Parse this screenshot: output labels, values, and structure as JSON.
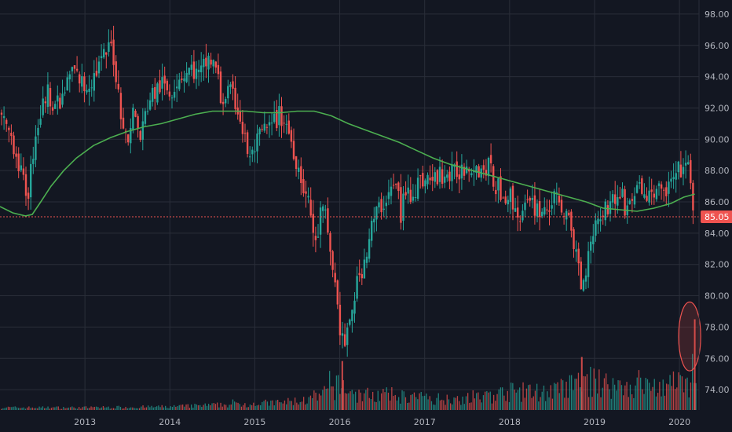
{
  "chart_data": {
    "type": "candlestick",
    "y_axis": {
      "position": "right",
      "range": [
        72.7,
        98.9
      ],
      "ticks": [
        "98.00",
        "96.00",
        "94.00",
        "92.00",
        "90.00",
        "88.00",
        "86.00",
        "84.00",
        "82.00",
        "80.00",
        "78.00",
        "76.00",
        "74.00"
      ]
    },
    "x_axis": {
      "range": [
        2012.0,
        2020.23
      ],
      "ticks": [
        {
          "label": "2013",
          "x": 2013.0
        },
        {
          "label": "2014",
          "x": 2014.0
        },
        {
          "label": "2015",
          "x": 2015.0
        },
        {
          "label": "2016",
          "x": 2016.0
        },
        {
          "label": "2017",
          "x": 2017.0
        },
        {
          "label": "2018",
          "x": 2018.0
        },
        {
          "label": "2019",
          "x": 2019.0
        },
        {
          "label": "2020",
          "x": 2020.0
        }
      ]
    },
    "grid": true,
    "colors": {
      "background": "#131722",
      "grid": "#2a2e39",
      "up": "#26a69a",
      "down": "#ef5350",
      "moving_average": "#4caf50",
      "price_line": "#ef5350",
      "highlight": "#ef5350"
    },
    "last_price": {
      "value": 85.05,
      "label": "85.05"
    },
    "price_path": [
      [
        2012.0,
        91.5
      ],
      [
        2012.15,
        90.0
      ],
      [
        2012.28,
        87.0
      ],
      [
        2012.33,
        86.6
      ],
      [
        2012.42,
        90.5
      ],
      [
        2012.55,
        93.0
      ],
      [
        2012.7,
        92.0
      ],
      [
        2012.85,
        94.5
      ],
      [
        2013.0,
        93.3
      ],
      [
        2013.1,
        94.0
      ],
      [
        2013.25,
        95.5
      ],
      [
        2013.32,
        96.0
      ],
      [
        2013.38,
        93.5
      ],
      [
        2013.45,
        91.0
      ],
      [
        2013.5,
        89.5
      ],
      [
        2013.56,
        92.0
      ],
      [
        2013.65,
        90.0
      ],
      [
        2013.75,
        92.5
      ],
      [
        2013.9,
        93.5
      ],
      [
        2014.0,
        93.0
      ],
      [
        2014.1,
        94.0
      ],
      [
        2014.25,
        94.5
      ],
      [
        2014.35,
        94.0
      ],
      [
        2014.45,
        95.2
      ],
      [
        2014.55,
        94.5
      ],
      [
        2014.6,
        92.5
      ],
      [
        2014.7,
        93.0
      ],
      [
        2014.8,
        92.0
      ],
      [
        2014.88,
        90.0
      ],
      [
        2014.95,
        88.5
      ],
      [
        2015.0,
        89.5
      ],
      [
        2015.1,
        90.5
      ],
      [
        2015.2,
        90.8
      ],
      [
        2015.28,
        91.5
      ],
      [
        2015.36,
        91.2
      ],
      [
        2015.45,
        89.5
      ],
      [
        2015.55,
        87.5
      ],
      [
        2015.65,
        85.5
      ],
      [
        2015.72,
        83.0
      ],
      [
        2015.78,
        85.5
      ],
      [
        2015.83,
        85.0
      ],
      [
        2015.9,
        82.5
      ],
      [
        2015.95,
        80.5
      ],
      [
        2016.0,
        78.0
      ],
      [
        2016.05,
        76.8
      ],
      [
        2016.1,
        77.5
      ],
      [
        2016.15,
        79.5
      ],
      [
        2016.22,
        81.0
      ],
      [
        2016.3,
        82.5
      ],
      [
        2016.38,
        84.5
      ],
      [
        2016.45,
        85.5
      ],
      [
        2016.52,
        86.0
      ],
      [
        2016.6,
        86.8
      ],
      [
        2016.68,
        87.0
      ],
      [
        2016.72,
        85.0
      ],
      [
        2016.76,
        86.5
      ],
      [
        2016.85,
        86.6
      ],
      [
        2016.92,
        87.2
      ],
      [
        2017.0,
        87.5
      ],
      [
        2017.1,
        87.3
      ],
      [
        2017.2,
        87.8
      ],
      [
        2017.3,
        87.6
      ],
      [
        2017.4,
        88.0
      ],
      [
        2017.5,
        88.4
      ],
      [
        2017.58,
        88.5
      ],
      [
        2017.66,
        88.0
      ],
      [
        2017.75,
        88.3
      ],
      [
        2017.82,
        87.2
      ],
      [
        2017.92,
        86.5
      ],
      [
        2018.0,
        86.5
      ],
      [
        2018.08,
        85.2
      ],
      [
        2018.18,
        85.5
      ],
      [
        2018.28,
        85.8
      ],
      [
        2018.4,
        85.4
      ],
      [
        2018.5,
        86.0
      ],
      [
        2018.6,
        86.0
      ],
      [
        2018.68,
        85.0
      ],
      [
        2018.74,
        83.5
      ],
      [
        2018.8,
        82.5
      ],
      [
        2018.86,
        80.2
      ],
      [
        2018.92,
        83.0
      ],
      [
        2019.0,
        84.5
      ],
      [
        2019.1,
        85.5
      ],
      [
        2019.2,
        86.0
      ],
      [
        2019.3,
        86.5
      ],
      [
        2019.38,
        85.5
      ],
      [
        2019.45,
        86.5
      ],
      [
        2019.55,
        86.8
      ],
      [
        2019.62,
        86.2
      ],
      [
        2019.72,
        86.8
      ],
      [
        2019.8,
        86.5
      ],
      [
        2019.88,
        87.0
      ],
      [
        2019.95,
        87.5
      ],
      [
        2020.0,
        88.0
      ],
      [
        2020.06,
        88.4
      ],
      [
        2020.1,
        88.0
      ],
      [
        2020.14,
        86.8
      ],
      [
        2020.18,
        85.05
      ]
    ],
    "moving_average": [
      [
        2012.0,
        85.7
      ],
      [
        2012.15,
        85.3
      ],
      [
        2012.3,
        85.1
      ],
      [
        2012.38,
        85.2
      ],
      [
        2012.48,
        86.0
      ],
      [
        2012.6,
        87.0
      ],
      [
        2012.75,
        88.0
      ],
      [
        2012.9,
        88.8
      ],
      [
        2013.1,
        89.6
      ],
      [
        2013.3,
        90.1
      ],
      [
        2013.5,
        90.5
      ],
      [
        2013.7,
        90.8
      ],
      [
        2013.9,
        91.0
      ],
      [
        2014.1,
        91.3
      ],
      [
        2014.3,
        91.6
      ],
      [
        2014.5,
        91.8
      ],
      [
        2014.7,
        91.8
      ],
      [
        2014.9,
        91.8
      ],
      [
        2015.1,
        91.7
      ],
      [
        2015.3,
        91.7
      ],
      [
        2015.5,
        91.8
      ],
      [
        2015.7,
        91.8
      ],
      [
        2015.9,
        91.5
      ],
      [
        2016.1,
        91.0
      ],
      [
        2016.3,
        90.6
      ],
      [
        2016.5,
        90.2
      ],
      [
        2016.7,
        89.8
      ],
      [
        2016.9,
        89.3
      ],
      [
        2017.1,
        88.8
      ],
      [
        2017.3,
        88.4
      ],
      [
        2017.5,
        88.1
      ],
      [
        2017.7,
        87.8
      ],
      [
        2017.9,
        87.5
      ],
      [
        2018.1,
        87.2
      ],
      [
        2018.3,
        86.9
      ],
      [
        2018.5,
        86.6
      ],
      [
        2018.7,
        86.3
      ],
      [
        2018.9,
        86.0
      ],
      [
        2019.1,
        85.6
      ],
      [
        2019.3,
        85.5
      ],
      [
        2019.5,
        85.4
      ],
      [
        2019.7,
        85.6
      ],
      [
        2019.9,
        85.9
      ],
      [
        2020.05,
        86.3
      ],
      [
        2020.18,
        86.5
      ]
    ],
    "volume": {
      "max_label_level": 78.5,
      "profile": [
        [
          2012.0,
          0.03
        ],
        [
          2013.0,
          0.03
        ],
        [
          2014.0,
          0.04
        ],
        [
          2014.8,
          0.07
        ],
        [
          2015.3,
          0.09
        ],
        [
          2015.7,
          0.13
        ],
        [
          2016.0,
          0.3
        ],
        [
          2016.2,
          0.18
        ],
        [
          2016.6,
          0.18
        ],
        [
          2017.0,
          0.14
        ],
        [
          2017.6,
          0.14
        ],
        [
          2018.0,
          0.22
        ],
        [
          2018.5,
          0.22
        ],
        [
          2018.9,
          0.35
        ],
        [
          2019.2,
          0.3
        ],
        [
          2019.6,
          0.28
        ],
        [
          2020.0,
          0.3
        ],
        [
          2020.18,
          0.3
        ]
      ],
      "spikes": [
        {
          "x": 2016.03,
          "v": 0.48
        },
        {
          "x": 2018.85,
          "v": 0.52
        },
        {
          "x": 2020.18,
          "v": 0.89
        }
      ]
    },
    "annotation": {
      "type": "ellipse",
      "x": 2020.12,
      "y_top": 79.6,
      "y_bottom": 75.2,
      "x_from": 2019.99,
      "x_to": 2020.25
    }
  }
}
